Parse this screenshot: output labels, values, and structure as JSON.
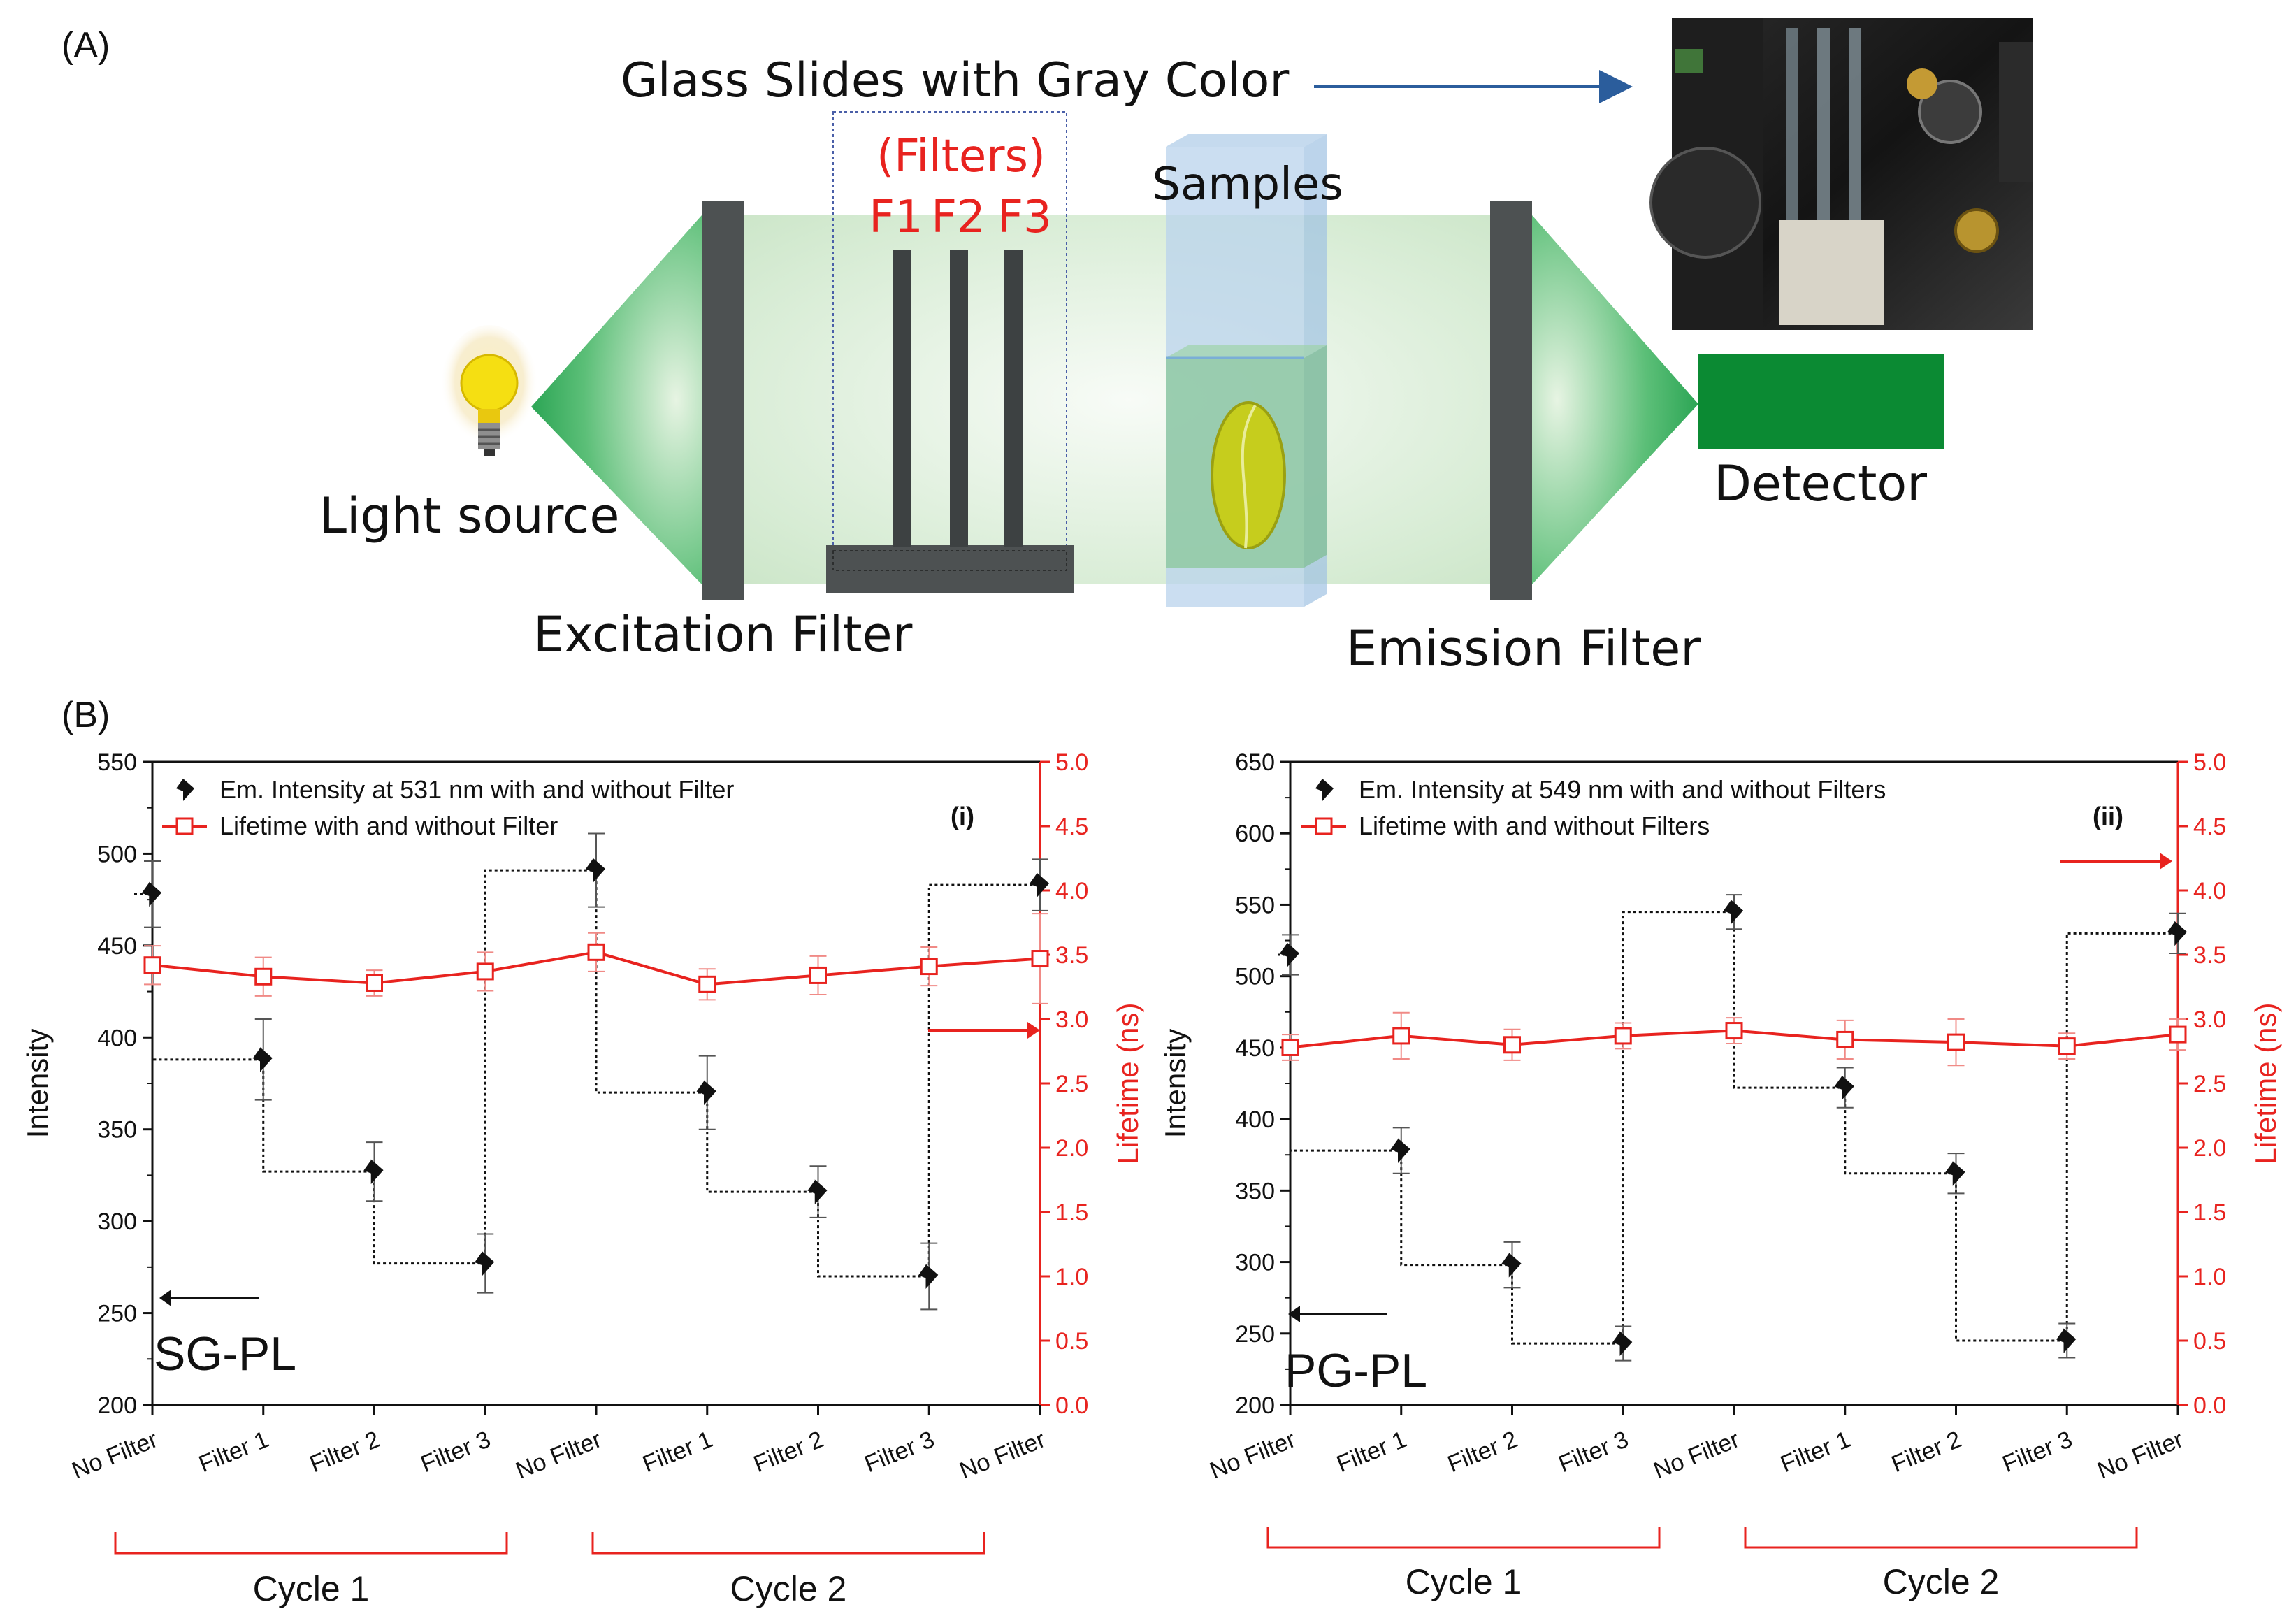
{
  "panel_a": {
    "label": "(A)",
    "top_caption": "Glass Slides with Gray Color",
    "filters_title": "(Filters)",
    "filter_names": [
      "F1",
      "F2",
      "F3"
    ],
    "samples": "Samples",
    "light_source": "Light source",
    "excitation_filter": "Excitation Filter",
    "emission_filter": "Emission Filter",
    "detector": "Detector"
  },
  "panel_b": {
    "label": "(B)"
  },
  "colors": {
    "intensity": "#111111",
    "lifetime": "#e8231f",
    "light_green": "#cfe8cc",
    "dark_gray": "#4d5152",
    "detector_green": "#0b8a33"
  },
  "chart_data": [
    {
      "type": "line",
      "tag": "(i)",
      "method_label": "SG-PL",
      "categories": [
        "No Filter",
        "Filter 1",
        "Filter 2",
        "Filter 3",
        "No Filter",
        "Filter 1",
        "Filter 2",
        "Filter 3",
        "No Filter"
      ],
      "cycles": [
        "Cycle 1",
        "Cycle 2"
      ],
      "ylabel": "Intensity",
      "ylabel_right": "Lifetime (ns)",
      "ylim": [
        200,
        550
      ],
      "yticks": [
        200,
        250,
        300,
        350,
        400,
        450,
        500,
        550
      ],
      "ylim_right": [
        0.0,
        5.0
      ],
      "yticks_right": [
        "0.0",
        "0.5",
        "1.0",
        "1.5",
        "2.0",
        "2.5",
        "3.0",
        "3.5",
        "4.0",
        "4.5",
        "5.0"
      ],
      "series": [
        {
          "name": "Em. Intensity at 531 nm with and without Filter",
          "axis": "left",
          "values": [
            478,
            388,
            327,
            277,
            491,
            370,
            316,
            270,
            483
          ],
          "errors": [
            18,
            22,
            16,
            16,
            20,
            20,
            14,
            18,
            14
          ]
        },
        {
          "name": "Lifetime with and without Filter",
          "axis": "right",
          "values": [
            3.42,
            3.33,
            3.28,
            3.37,
            3.52,
            3.27,
            3.34,
            3.41,
            3.47
          ],
          "errors": [
            0.15,
            0.15,
            0.1,
            0.15,
            0.15,
            0.12,
            0.15,
            0.15,
            0.35
          ]
        }
      ]
    },
    {
      "type": "line",
      "tag": "(ii)",
      "method_label": "PG-PL",
      "categories": [
        "No Filter",
        "Filter 1",
        "Filter 2",
        "Filter 3",
        "No Filter",
        "Filter 1",
        "Filter 2",
        "Filter 3",
        "No Filter"
      ],
      "cycles": [
        "Cycle 1",
        "Cycle 2"
      ],
      "ylabel": "Intensity",
      "ylabel_right": "Lifetime (ns)",
      "ylim": [
        200,
        650
      ],
      "yticks": [
        200,
        250,
        300,
        350,
        400,
        450,
        500,
        550,
        600,
        650
      ],
      "ylim_right": [
        0.0,
        5.0
      ],
      "yticks_right": [
        "0.0",
        "0.5",
        "1.0",
        "1.5",
        "2.0",
        "2.5",
        "3.0",
        "3.5",
        "4.0",
        "4.5",
        "5.0"
      ],
      "series": [
        {
          "name": "Em. Intensity at 549 nm with and without Filters",
          "axis": "left",
          "values": [
            515,
            378,
            298,
            243,
            545,
            422,
            362,
            245,
            530
          ],
          "errors": [
            14,
            16,
            16,
            12,
            12,
            14,
            14,
            12,
            14
          ]
        },
        {
          "name": "Lifetime with and without Filters",
          "axis": "right",
          "values": [
            2.78,
            2.87,
            2.8,
            2.87,
            2.91,
            2.84,
            2.82,
            2.79,
            2.88
          ],
          "errors": [
            0.1,
            0.18,
            0.12,
            0.1,
            0.1,
            0.15,
            0.18,
            0.1,
            0.12
          ]
        }
      ]
    }
  ]
}
